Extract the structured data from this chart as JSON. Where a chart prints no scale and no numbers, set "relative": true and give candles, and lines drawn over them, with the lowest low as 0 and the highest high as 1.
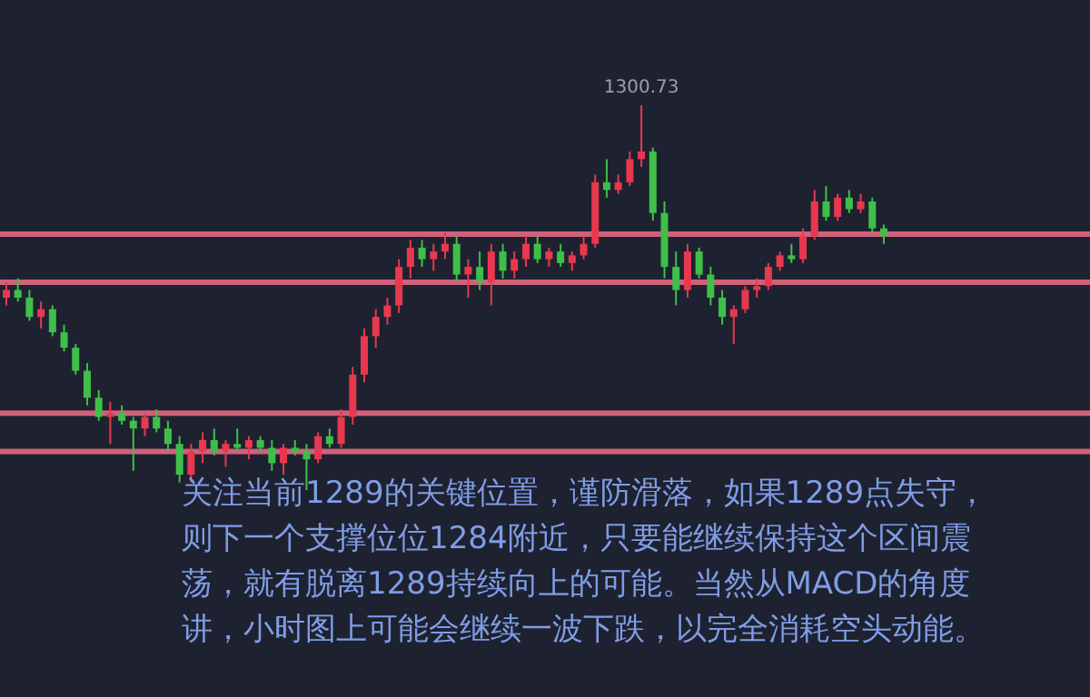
{
  "chart_data": {
    "type": "candlestick",
    "relative": true,
    "categories": [
      null,
      null,
      null,
      null,
      null,
      null,
      null,
      null,
      null,
      null,
      null,
      null,
      null,
      null,
      null,
      null,
      null,
      null,
      null,
      null,
      null,
      null,
      null,
      null,
      null,
      null,
      null,
      null,
      null,
      null,
      null,
      null,
      null,
      null,
      null,
      null,
      null,
      null,
      null,
      null,
      null,
      null,
      null,
      null,
      null,
      null,
      null,
      null,
      null,
      null,
      null,
      null,
      null,
      null,
      null,
      null,
      null,
      null,
      null,
      null,
      null,
      null,
      null,
      null,
      null,
      null,
      null,
      null,
      null,
      null,
      null,
      null,
      null,
      null,
      null,
      null,
      null
    ],
    "ohlc": [
      [
        0.5,
        0.54,
        0.48,
        0.52
      ],
      [
        0.52,
        0.55,
        0.49,
        0.5
      ],
      [
        0.5,
        0.52,
        0.44,
        0.45
      ],
      [
        0.45,
        0.49,
        0.42,
        0.47
      ],
      [
        0.47,
        0.48,
        0.4,
        0.41
      ],
      [
        0.41,
        0.43,
        0.36,
        0.37
      ],
      [
        0.37,
        0.38,
        0.3,
        0.31
      ],
      [
        0.31,
        0.33,
        0.22,
        0.24
      ],
      [
        0.24,
        0.26,
        0.18,
        0.19
      ],
      [
        0.19,
        0.23,
        0.12,
        0.2
      ],
      [
        0.2,
        0.22,
        0.17,
        0.18
      ],
      [
        0.18,
        0.19,
        0.05,
        0.16
      ],
      [
        0.16,
        0.2,
        0.14,
        0.19
      ],
      [
        0.19,
        0.21,
        0.15,
        0.16
      ],
      [
        0.16,
        0.18,
        0.1,
        0.12
      ],
      [
        0.12,
        0.14,
        0.02,
        0.04
      ],
      [
        0.04,
        0.12,
        0.02,
        0.1
      ],
      [
        0.1,
        0.15,
        0.07,
        0.13
      ],
      [
        0.13,
        0.16,
        0.09,
        0.1
      ],
      [
        0.1,
        0.13,
        0.06,
        0.12
      ],
      [
        0.12,
        0.16,
        0.1,
        0.11
      ],
      [
        0.11,
        0.14,
        0.08,
        0.13
      ],
      [
        0.13,
        0.14,
        0.1,
        0.11
      ],
      [
        0.11,
        0.13,
        0.05,
        0.07
      ],
      [
        0.07,
        0.12,
        0.04,
        0.11
      ],
      [
        0.11,
        0.13,
        0.09,
        0.1
      ],
      [
        0.1,
        0.12,
        0.0,
        0.08
      ],
      [
        0.08,
        0.15,
        0.07,
        0.14
      ],
      [
        0.14,
        0.16,
        0.11,
        0.12
      ],
      [
        0.12,
        0.21,
        0.11,
        0.19
      ],
      [
        0.19,
        0.32,
        0.17,
        0.3
      ],
      [
        0.3,
        0.42,
        0.28,
        0.4
      ],
      [
        0.4,
        0.47,
        0.37,
        0.45
      ],
      [
        0.45,
        0.5,
        0.43,
        0.48
      ],
      [
        0.48,
        0.6,
        0.46,
        0.58
      ],
      [
        0.58,
        0.65,
        0.55,
        0.63
      ],
      [
        0.63,
        0.65,
        0.58,
        0.6
      ],
      [
        0.6,
        0.64,
        0.57,
        0.62
      ],
      [
        0.62,
        0.67,
        0.6,
        0.64
      ],
      [
        0.64,
        0.66,
        0.54,
        0.56
      ],
      [
        0.56,
        0.6,
        0.5,
        0.58
      ],
      [
        0.58,
        0.62,
        0.52,
        0.54
      ],
      [
        0.54,
        0.64,
        0.48,
        0.62
      ],
      [
        0.62,
        0.64,
        0.55,
        0.57
      ],
      [
        0.57,
        0.62,
        0.55,
        0.6
      ],
      [
        0.6,
        0.66,
        0.58,
        0.64
      ],
      [
        0.64,
        0.66,
        0.59,
        0.6
      ],
      [
        0.6,
        0.63,
        0.58,
        0.62
      ],
      [
        0.62,
        0.64,
        0.58,
        0.59
      ],
      [
        0.59,
        0.62,
        0.57,
        0.61
      ],
      [
        0.61,
        0.66,
        0.6,
        0.64
      ],
      [
        0.64,
        0.82,
        0.63,
        0.8
      ],
      [
        0.8,
        0.86,
        0.76,
        0.78
      ],
      [
        0.78,
        0.82,
        0.77,
        0.8
      ],
      [
        0.8,
        0.88,
        0.79,
        0.86
      ],
      [
        0.86,
        1.0,
        0.84,
        0.88
      ],
      [
        0.88,
        0.89,
        0.7,
        0.72
      ],
      [
        0.72,
        0.75,
        0.55,
        0.58
      ],
      [
        0.58,
        0.62,
        0.48,
        0.52
      ],
      [
        0.52,
        0.64,
        0.5,
        0.62
      ],
      [
        0.62,
        0.63,
        0.55,
        0.56
      ],
      [
        0.56,
        0.58,
        0.48,
        0.5
      ],
      [
        0.5,
        0.52,
        0.43,
        0.45
      ],
      [
        0.45,
        0.48,
        0.38,
        0.47
      ],
      [
        0.47,
        0.53,
        0.46,
        0.52
      ],
      [
        0.52,
        0.55,
        0.5,
        0.53
      ],
      [
        0.53,
        0.59,
        0.52,
        0.58
      ],
      [
        0.58,
        0.62,
        0.57,
        0.61
      ],
      [
        0.61,
        0.64,
        0.59,
        0.6
      ],
      [
        0.6,
        0.68,
        0.59,
        0.66
      ],
      [
        0.66,
        0.78,
        0.65,
        0.75
      ],
      [
        0.75,
        0.79,
        0.7,
        0.71
      ],
      [
        0.71,
        0.77,
        0.7,
        0.76
      ],
      [
        0.76,
        0.78,
        0.72,
        0.73
      ],
      [
        0.73,
        0.77,
        0.72,
        0.75
      ],
      [
        0.75,
        0.76,
        0.67,
        0.68
      ],
      [
        0.68,
        0.69,
        0.64,
        0.66
      ]
    ],
    "ref_lines": [
      {
        "axis": "y",
        "value": 0.665,
        "color": "#f06b8a"
      },
      {
        "axis": "y",
        "value": 0.54,
        "color": "#f06b8a"
      },
      {
        "axis": "y",
        "value": 0.2,
        "color": "#f06b8a"
      },
      {
        "axis": "y",
        "value": 0.1,
        "color": "#f06b8a"
      }
    ],
    "annotations": [
      {
        "text": "1300.73",
        "y": 1.0
      },
      "关注当前1289的关键位置，谨防滑落，如果1289点失守，",
      "则下一个支撑位位1284附近，只要能继续保持这个区间震",
      "荡，就有脱离1289持续向上的可能。当然从MACD的角度",
      "讲，小时图上可能会继续一波下跌，以完全消耗空头动能。"
    ]
  }
}
